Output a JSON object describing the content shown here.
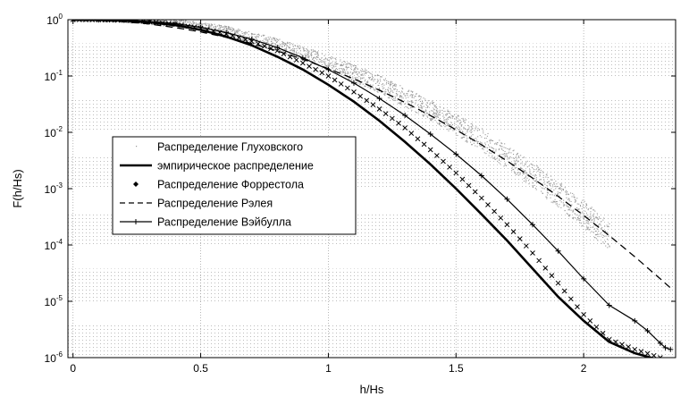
{
  "chart_data": {
    "type": "line",
    "xlabel": "h/Hs",
    "ylabel": "F(h/Hs)",
    "xlim": [
      -0.02,
      2.36
    ],
    "ylim": [
      1e-06,
      1
    ],
    "yscale": "log",
    "grid": true,
    "legend_position": "center-left",
    "x_ticks": [
      "0",
      "0.5",
      "1",
      "1.5",
      "2"
    ],
    "y_ticks": [
      {
        "base": "10",
        "exp": "0"
      },
      {
        "base": "10",
        "exp": "-1"
      },
      {
        "base": "10",
        "exp": "-2"
      },
      {
        "base": "10",
        "exp": "-3"
      },
      {
        "base": "10",
        "exp": "-4"
      },
      {
        "base": "10",
        "exp": "-5"
      },
      {
        "base": "10",
        "exp": "-6"
      }
    ],
    "series": [
      {
        "name": "Распределение Глуховского",
        "style": "scatter-dots",
        "color": "#9a9a9a",
        "x": [
          0.0,
          0.2,
          0.4,
          0.6,
          0.8,
          1.0,
          1.2,
          1.4,
          1.6,
          1.8,
          2.0,
          2.1
        ],
        "y": [
          1.0,
          0.98,
          0.85,
          0.6,
          0.34,
          0.16,
          0.065,
          0.022,
          0.0065,
          0.0015,
          0.0003,
          0.00012
        ]
      },
      {
        "name": "эмпирическое распределение",
        "style": "solid-thick",
        "color": "#000000",
        "x": [
          0.0,
          0.1,
          0.2,
          0.3,
          0.4,
          0.5,
          0.6,
          0.7,
          0.8,
          0.9,
          1.0,
          1.1,
          1.2,
          1.3,
          1.4,
          1.5,
          1.6,
          1.7,
          1.8,
          1.9,
          2.0,
          2.1,
          2.2,
          2.3
        ],
        "y": [
          1.0,
          0.99,
          0.96,
          0.9,
          0.8,
          0.66,
          0.5,
          0.35,
          0.22,
          0.13,
          0.07,
          0.035,
          0.016,
          0.0068,
          0.0027,
          0.001,
          0.00035,
          0.00012,
          3.8e-05,
          1.2e-05,
          4.5e-06,
          1.9e-06,
          1.2e-06,
          9e-07
        ]
      },
      {
        "name": "Распределение Форрестола",
        "style": "diamond-markers",
        "color": "#000000",
        "x": [
          0.0,
          0.1,
          0.2,
          0.3,
          0.4,
          0.5,
          0.6,
          0.7,
          0.8,
          0.9,
          1.0,
          1.1,
          1.2,
          1.3,
          1.4,
          1.5,
          1.6,
          1.7,
          1.8,
          1.9,
          2.0,
          2.1,
          2.2,
          2.3
        ],
        "y": [
          1.0,
          0.99,
          0.97,
          0.92,
          0.83,
          0.71,
          0.56,
          0.41,
          0.28,
          0.17,
          0.1,
          0.052,
          0.026,
          0.012,
          0.0049,
          0.0019,
          0.00068,
          0.00023,
          7.2e-05,
          2.1e-05,
          5.8e-06,
          2.1e-06,
          1.4e-06,
          1e-06
        ]
      },
      {
        "name": "Распределение Рэлея",
        "style": "dashed",
        "color": "#000000",
        "x": [
          0.0,
          0.1,
          0.2,
          0.3,
          0.4,
          0.5,
          0.6,
          0.7,
          0.8,
          0.9,
          1.0,
          1.1,
          1.2,
          1.3,
          1.4,
          1.5,
          1.6,
          1.7,
          1.8,
          1.9,
          2.0,
          2.1,
          2.2,
          2.3,
          2.35
        ],
        "y": [
          1.0,
          0.98,
          0.923,
          0.835,
          0.726,
          0.607,
          0.487,
          0.375,
          0.278,
          0.198,
          0.135,
          0.089,
          0.056,
          0.034,
          0.0198,
          0.0111,
          0.006,
          0.0031,
          0.00154,
          0.00073,
          0.000335,
          0.000147,
          6.2e-05,
          2.5e-05,
          1.58e-05
        ]
      },
      {
        "name": "Распределение Вэйбулла",
        "style": "solid-plus",
        "color": "#000000",
        "x": [
          0.0,
          0.1,
          0.2,
          0.3,
          0.4,
          0.5,
          0.6,
          0.7,
          0.8,
          0.9,
          1.0,
          1.1,
          1.2,
          1.3,
          1.4,
          1.5,
          1.6,
          1.7,
          1.8,
          1.9,
          2.0,
          2.1,
          2.2,
          2.25,
          2.3,
          2.32,
          2.34
        ],
        "y": [
          1.0,
          0.99,
          0.975,
          0.93,
          0.85,
          0.73,
          0.59,
          0.45,
          0.32,
          0.21,
          0.13,
          0.075,
          0.04,
          0.02,
          0.0093,
          0.0041,
          0.0017,
          0.00065,
          0.00023,
          7.8e-05,
          2.5e-05,
          8.5e-06,
          4.5e-06,
          3e-06,
          1.8e-06,
          1.5e-06,
          1.4e-06
        ]
      }
    ]
  }
}
